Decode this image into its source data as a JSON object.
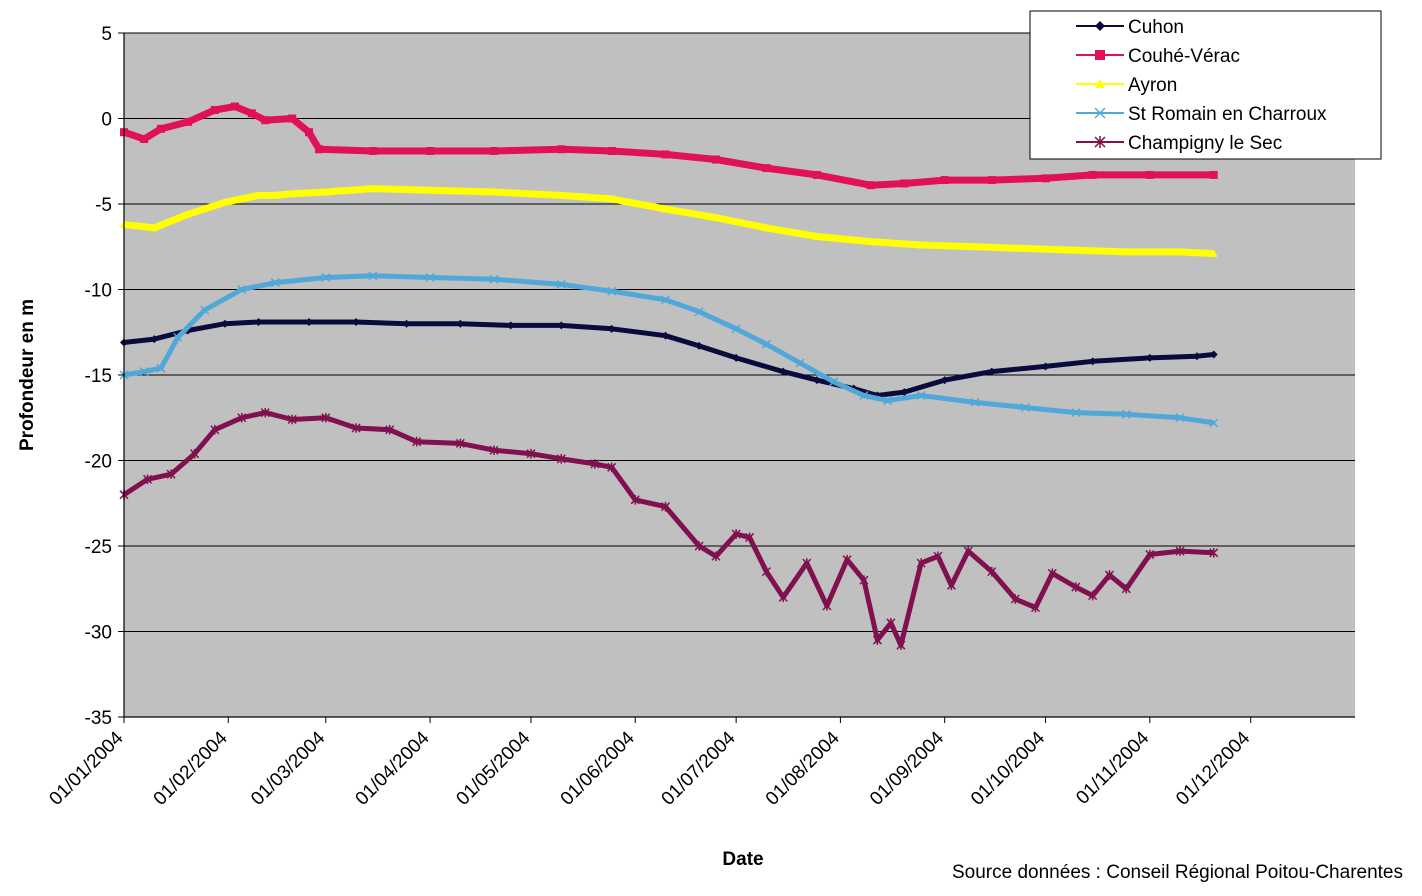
{
  "chart_data": {
    "type": "line",
    "title": "",
    "xlabel": "Date",
    "ylabel": "Profondeur en m",
    "source": "Source données : Conseil Régional Poitou-Charentes",
    "ylim": [
      -35,
      5
    ],
    "yticks": [
      5,
      0,
      -5,
      -10,
      -15,
      -20,
      -25,
      -30,
      -35
    ],
    "xlim": [
      "2004-01-01",
      "2004-12-01"
    ],
    "xticks": [
      "2004-01-01",
      "2004-02-01",
      "2004-03-01",
      "2004-04-01",
      "2004-05-01",
      "2004-06-01",
      "2004-07-01",
      "2004-08-01",
      "2004-09-01",
      "2004-10-01",
      "2004-11-01",
      "2004-12-01"
    ],
    "xtick_labels": [
      "01/01/2004",
      "01/02/2004",
      "01/03/2004",
      "01/04/2004",
      "01/05/2004",
      "01/06/2004",
      "01/07/2004",
      "01/08/2004",
      "01/09/2004",
      "01/10/2004",
      "01/11/2004",
      "01/12/2004"
    ],
    "grid": "horizontal",
    "legend_position": "top-right",
    "background_color": "#c0c0c0",
    "series": [
      {
        "name": "Cuhon",
        "color": "#0a0a3c",
        "marker": "diamond",
        "points": [
          [
            "2004-01-01",
            -13.1
          ],
          [
            "2004-01-10",
            -12.9
          ],
          [
            "2004-01-20",
            -12.4
          ],
          [
            "2004-01-31",
            -12.0
          ],
          [
            "2004-02-10",
            -11.9
          ],
          [
            "2004-02-25",
            -11.9
          ],
          [
            "2004-03-10",
            -11.9
          ],
          [
            "2004-03-25",
            -12.0
          ],
          [
            "2004-04-10",
            -12.0
          ],
          [
            "2004-04-25",
            -12.1
          ],
          [
            "2004-05-10",
            -12.1
          ],
          [
            "2004-05-25",
            -12.3
          ],
          [
            "2004-06-10",
            -12.7
          ],
          [
            "2004-06-20",
            -13.3
          ],
          [
            "2004-07-01",
            -14.0
          ],
          [
            "2004-07-15",
            -14.8
          ],
          [
            "2004-07-25",
            -15.3
          ],
          [
            "2004-08-05",
            -15.8
          ],
          [
            "2004-08-12",
            -16.2
          ],
          [
            "2004-08-20",
            -16.0
          ],
          [
            "2004-09-01",
            -15.3
          ],
          [
            "2004-09-15",
            -14.8
          ],
          [
            "2004-10-01",
            -14.5
          ],
          [
            "2004-10-15",
            -14.2
          ],
          [
            "2004-11-01",
            -14.0
          ],
          [
            "2004-11-15",
            -13.9
          ],
          [
            "2004-11-20",
            -13.8
          ]
        ]
      },
      {
        "name": "Couhé-Vérac",
        "color": "#e0105a",
        "marker": "square",
        "points": [
          [
            "2004-01-01",
            -0.8
          ],
          [
            "2004-01-07",
            -1.2
          ],
          [
            "2004-01-12",
            -0.6
          ],
          [
            "2004-01-20",
            -0.2
          ],
          [
            "2004-01-28",
            0.5
          ],
          [
            "2004-02-03",
            0.7
          ],
          [
            "2004-02-08",
            0.3
          ],
          [
            "2004-02-12",
            -0.1
          ],
          [
            "2004-02-20",
            0.0
          ],
          [
            "2004-02-25",
            -0.8
          ],
          [
            "2004-02-28",
            -1.8
          ],
          [
            "2004-03-15",
            -1.9
          ],
          [
            "2004-04-01",
            -1.9
          ],
          [
            "2004-04-20",
            -1.9
          ],
          [
            "2004-05-10",
            -1.8
          ],
          [
            "2004-05-25",
            -1.9
          ],
          [
            "2004-06-10",
            -2.1
          ],
          [
            "2004-06-25",
            -2.4
          ],
          [
            "2004-07-10",
            -2.9
          ],
          [
            "2004-07-25",
            -3.3
          ],
          [
            "2004-08-10",
            -3.9
          ],
          [
            "2004-08-20",
            -3.8
          ],
          [
            "2004-09-01",
            -3.6
          ],
          [
            "2004-09-15",
            -3.6
          ],
          [
            "2004-10-01",
            -3.5
          ],
          [
            "2004-10-15",
            -3.3
          ],
          [
            "2004-11-01",
            -3.3
          ],
          [
            "2004-11-20",
            -3.3
          ]
        ]
      },
      {
        "name": "Ayron",
        "color": "#ffff00",
        "marker": "triangle",
        "points": [
          [
            "2004-01-01",
            -6.2
          ],
          [
            "2004-01-10",
            -6.4
          ],
          [
            "2004-01-20",
            -5.6
          ],
          [
            "2004-01-31",
            -4.9
          ],
          [
            "2004-02-10",
            -4.5
          ],
          [
            "2004-02-15",
            -4.5
          ],
          [
            "2004-02-20",
            -4.4
          ],
          [
            "2004-03-01",
            -4.3
          ],
          [
            "2004-03-15",
            -4.1
          ],
          [
            "2004-04-01",
            -4.2
          ],
          [
            "2004-04-20",
            -4.3
          ],
          [
            "2004-05-10",
            -4.5
          ],
          [
            "2004-05-25",
            -4.7
          ],
          [
            "2004-06-10",
            -5.3
          ],
          [
            "2004-06-25",
            -5.8
          ],
          [
            "2004-07-10",
            -6.4
          ],
          [
            "2004-07-25",
            -6.9
          ],
          [
            "2004-08-10",
            -7.2
          ],
          [
            "2004-08-25",
            -7.4
          ],
          [
            "2004-09-10",
            -7.5
          ],
          [
            "2004-09-25",
            -7.6
          ],
          [
            "2004-10-10",
            -7.7
          ],
          [
            "2004-10-25",
            -7.8
          ],
          [
            "2004-11-10",
            -7.8
          ],
          [
            "2004-11-20",
            -7.9
          ]
        ]
      },
      {
        "name": "St Romain en Charroux",
        "color": "#4fa8d8",
        "marker": "x",
        "points": [
          [
            "2004-01-01",
            -15.0
          ],
          [
            "2004-01-07",
            -14.8
          ],
          [
            "2004-01-12",
            -14.6
          ],
          [
            "2004-01-17",
            -12.8
          ],
          [
            "2004-01-25",
            -11.2
          ],
          [
            "2004-02-05",
            -10.0
          ],
          [
            "2004-02-15",
            -9.6
          ],
          [
            "2004-03-01",
            -9.3
          ],
          [
            "2004-03-15",
            -9.2
          ],
          [
            "2004-04-01",
            -9.3
          ],
          [
            "2004-04-20",
            -9.4
          ],
          [
            "2004-05-10",
            -9.7
          ],
          [
            "2004-05-25",
            -10.1
          ],
          [
            "2004-06-10",
            -10.6
          ],
          [
            "2004-06-20",
            -11.3
          ],
          [
            "2004-07-01",
            -12.3
          ],
          [
            "2004-07-10",
            -13.2
          ],
          [
            "2004-07-20",
            -14.3
          ],
          [
            "2004-07-30",
            -15.4
          ],
          [
            "2004-08-08",
            -16.2
          ],
          [
            "2004-08-15",
            -16.5
          ],
          [
            "2004-08-25",
            -16.2
          ],
          [
            "2004-09-10",
            -16.6
          ],
          [
            "2004-09-25",
            -16.9
          ],
          [
            "2004-10-10",
            -17.2
          ],
          [
            "2004-10-25",
            -17.3
          ],
          [
            "2004-11-10",
            -17.5
          ],
          [
            "2004-11-20",
            -17.8
          ]
        ]
      },
      {
        "name": "Champigny le Sec",
        "color": "#80104f",
        "marker": "star",
        "points": [
          [
            "2004-01-01",
            -22.0
          ],
          [
            "2004-01-08",
            -21.1
          ],
          [
            "2004-01-15",
            -20.8
          ],
          [
            "2004-01-22",
            -19.6
          ],
          [
            "2004-01-28",
            -18.2
          ],
          [
            "2004-02-05",
            -17.5
          ],
          [
            "2004-02-12",
            -17.2
          ],
          [
            "2004-02-20",
            -17.6
          ],
          [
            "2004-03-01",
            -17.5
          ],
          [
            "2004-03-10",
            -18.1
          ],
          [
            "2004-03-20",
            -18.2
          ],
          [
            "2004-03-28",
            -18.9
          ],
          [
            "2004-04-10",
            -19.0
          ],
          [
            "2004-04-20",
            -19.4
          ],
          [
            "2004-05-01",
            -19.6
          ],
          [
            "2004-05-10",
            -19.9
          ],
          [
            "2004-05-20",
            -20.2
          ],
          [
            "2004-05-25",
            -20.4
          ],
          [
            "2004-06-01",
            -22.3
          ],
          [
            "2004-06-10",
            -22.7
          ],
          [
            "2004-06-20",
            -25.0
          ],
          [
            "2004-06-25",
            -25.6
          ],
          [
            "2004-07-01",
            -24.3
          ],
          [
            "2004-07-05",
            -24.5
          ],
          [
            "2004-07-10",
            -26.5
          ],
          [
            "2004-07-15",
            -28.0
          ],
          [
            "2004-07-22",
            -26.0
          ],
          [
            "2004-07-28",
            -28.5
          ],
          [
            "2004-08-03",
            -25.8
          ],
          [
            "2004-08-08",
            -27.0
          ],
          [
            "2004-08-12",
            -30.5
          ],
          [
            "2004-08-16",
            -29.5
          ],
          [
            "2004-08-19",
            -30.8
          ],
          [
            "2004-08-25",
            -26.0
          ],
          [
            "2004-08-30",
            -25.6
          ],
          [
            "2004-09-03",
            -27.3
          ],
          [
            "2004-09-08",
            -25.3
          ],
          [
            "2004-09-15",
            -26.5
          ],
          [
            "2004-09-22",
            -28.1
          ],
          [
            "2004-09-28",
            -28.6
          ],
          [
            "2004-10-03",
            -26.6
          ],
          [
            "2004-10-10",
            -27.4
          ],
          [
            "2004-10-15",
            -27.9
          ],
          [
            "2004-10-20",
            -26.7
          ],
          [
            "2004-10-25",
            -27.5
          ],
          [
            "2004-11-01",
            -25.5
          ],
          [
            "2004-11-10",
            -25.3
          ],
          [
            "2004-11-20",
            -25.4
          ]
        ]
      }
    ]
  }
}
